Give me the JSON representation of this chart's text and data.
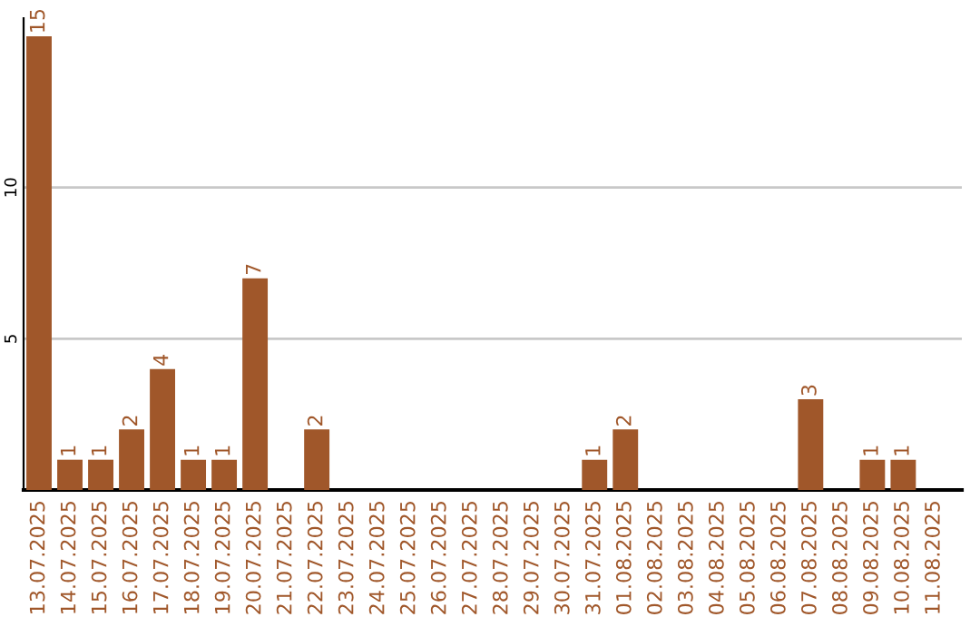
{
  "chart_data": {
    "type": "bar",
    "categories": [
      "13.07.2025",
      "14.07.2025",
      "15.07.2025",
      "16.07.2025",
      "17.07.2025",
      "18.07.2025",
      "19.07.2025",
      "20.07.2025",
      "21.07.2025",
      "22.07.2025",
      "23.07.2025",
      "24.07.2025",
      "25.07.2025",
      "26.07.2025",
      "27.07.2025",
      "28.07.2025",
      "29.07.2025",
      "30.07.2025",
      "31.07.2025",
      "01.08.2025",
      "02.08.2025",
      "03.08.2025",
      "04.08.2025",
      "05.08.2025",
      "06.08.2025",
      "07.08.2025",
      "08.08.2025",
      "09.08.2025",
      "10.08.2025",
      "11.08.2025"
    ],
    "values": [
      15,
      1,
      1,
      2,
      4,
      1,
      1,
      7,
      0,
      2,
      0,
      0,
      0,
      0,
      0,
      0,
      0,
      0,
      1,
      2,
      0,
      0,
      0,
      0,
      0,
      3,
      0,
      1,
      1,
      0
    ],
    "value_labels": [
      "15",
      "1",
      "1",
      "2",
      "4",
      "1",
      "1",
      "7",
      null,
      "2",
      null,
      null,
      null,
      null,
      null,
      null,
      null,
      null,
      "1",
      "2",
      null,
      null,
      null,
      null,
      null,
      "3",
      null,
      "1",
      "1",
      null
    ],
    "color": "#a0572a",
    "ylim": [
      0,
      15.6
    ],
    "yticks": [
      5,
      10
    ],
    "grid": "y",
    "legend": false
  }
}
